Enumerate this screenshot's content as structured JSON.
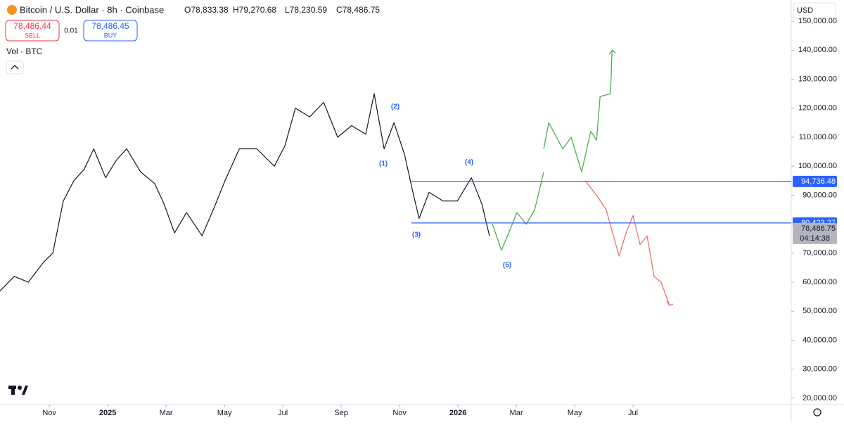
{
  "chart_data": {
    "type": "line",
    "title": "Bitcoin / U.S. Dollar · 8h · Coinbase",
    "ohlc": [
      "O78,833.38",
      "H79,270.68",
      "L78,230.59",
      "C78,486.75"
    ],
    "sell": {
      "price": "78,486.44",
      "label": "SELL"
    },
    "spread": "0.01",
    "buy": {
      "price": "78,486.45",
      "label": "BUY"
    },
    "volume_label": "Vol · BTC",
    "currency": "USD",
    "xlim": [
      -1.69,
      25.42
    ],
    "ylim": [
      17800,
      157300
    ],
    "xticks": [
      {
        "value": 0,
        "label": "Nov"
      },
      {
        "value": 2,
        "label": "2025"
      },
      {
        "value": 4,
        "label": "Mar"
      },
      {
        "value": 6,
        "label": "May"
      },
      {
        "value": 8,
        "label": "Jul"
      },
      {
        "value": 10,
        "label": "Sep"
      },
      {
        "value": 12,
        "label": "Nov"
      },
      {
        "value": 14,
        "label": "2026"
      },
      {
        "value": 16,
        "label": "Mar"
      },
      {
        "value": 18,
        "label": "May"
      },
      {
        "value": 20,
        "label": "Jul"
      }
    ],
    "yticks": [
      {
        "value": 20000,
        "label": "20,000.00"
      },
      {
        "value": 30000,
        "label": "30,000.00"
      },
      {
        "value": 40000,
        "label": "40,000.00"
      },
      {
        "value": 50000,
        "label": "50,000.00"
      },
      {
        "value": 60000,
        "label": "60,000.00"
      },
      {
        "value": 70000,
        "label": "70,000.00"
      },
      {
        "value": 80000,
        "label": "80,000.00"
      },
      {
        "value": 90000,
        "label": "90,000.00"
      },
      {
        "value": 100000,
        "label": "100,000.00"
      },
      {
        "value": 110000,
        "label": "110,000.00"
      },
      {
        "value": 120000,
        "label": "120,000.00"
      },
      {
        "value": 130000,
        "label": "130,000.00"
      },
      {
        "value": 140000,
        "label": "140,000.00"
      },
      {
        "value": 150000,
        "label": "150,000.00"
      }
    ],
    "series": [
      {
        "color": "#131722",
        "x": [
          -1.69,
          -1.2,
          -0.72,
          -0.19,
          0.12,
          0.48,
          0.84,
          1.2,
          1.52,
          1.93,
          2.29,
          2.65,
          3.13,
          3.61,
          3.93,
          4.29,
          4.7,
          5.23,
          5.66,
          6.02,
          6.51,
          7.11,
          7.71,
          8.07,
          8.43,
          8.92,
          9.4,
          9.88,
          10.36,
          10.84,
          11.13,
          11.47,
          11.81,
          12.17,
          12.48,
          12.67,
          13.01,
          13.49,
          13.98,
          14.46,
          14.82,
          15.08
        ],
        "values": [
          57000,
          62000,
          60000,
          67000,
          70000,
          88000,
          95000,
          99000,
          106000,
          96000,
          102000,
          106000,
          98000,
          94000,
          87000,
          77000,
          84000,
          76000,
          86000,
          95000,
          106000,
          106000,
          100000,
          107000,
          120000,
          117000,
          122000,
          110000,
          114000,
          111000,
          125000,
          106000,
          115000,
          104000,
          90000,
          82000,
          91000,
          88000,
          88000,
          96000,
          87000,
          76000
        ]
      },
      {
        "color": "#4caf50",
        "x": [
          15.18,
          15.49,
          15.78,
          16.02,
          16.34,
          16.63,
          16.94,
          16.94,
          16.94,
          17.11,
          17.59,
          17.88,
          18.24,
          18.55,
          18.75,
          18.87,
          19.23,
          19.28
        ],
        "values": [
          80000,
          71000,
          78000,
          84000,
          80000,
          85000,
          98000,
          null,
          106000,
          115000,
          106000,
          110000,
          98000,
          112000,
          109000,
          124000,
          125000,
          140000
        ]
      },
      {
        "color": "#e57373",
        "x": [
          18.36,
          18.75,
          19.08,
          19.52,
          19.76,
          20.0,
          20.24,
          20.48,
          20.72,
          20.96,
          21.25
        ],
        "values": [
          95000,
          90000,
          85000,
          69000,
          77000,
          83000,
          73000,
          76000,
          62000,
          60000,
          52000
        ]
      }
    ],
    "levels": [
      {
        "value": 94736.48,
        "label": "94,736.48",
        "color": "#2962ff"
      },
      {
        "value": 80423.27,
        "label": "80,423.27",
        "color": "#2962ff"
      }
    ],
    "last_price": {
      "value": 78486.75,
      "label": "78,486.75",
      "countdown": "04:14:38"
    },
    "waves": [
      "(1)",
      "(2)",
      "(3)",
      "(4)",
      "(5)"
    ]
  }
}
